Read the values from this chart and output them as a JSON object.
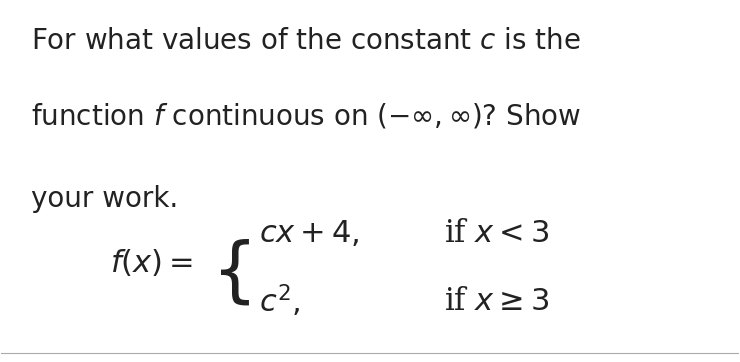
{
  "line1": "For what values of the constant $c$ is the",
  "line2": "function $f$ continuous on $(-\\infty, \\infty)$? Show",
  "line3": "your work.",
  "formula_lhs": "$f(x) = $",
  "formula_case1_expr": "$cx + 4,$",
  "formula_case1_cond": "if $x < 3$",
  "formula_case2_expr": "$c^2,$",
  "formula_case2_cond": "if $x \\geq 3$",
  "bg_color": "#ffffff",
  "text_color": "#222222",
  "font_size_body": 20,
  "font_size_formula": 22,
  "fig_width": 7.4,
  "fig_height": 3.62,
  "dpi": 100
}
